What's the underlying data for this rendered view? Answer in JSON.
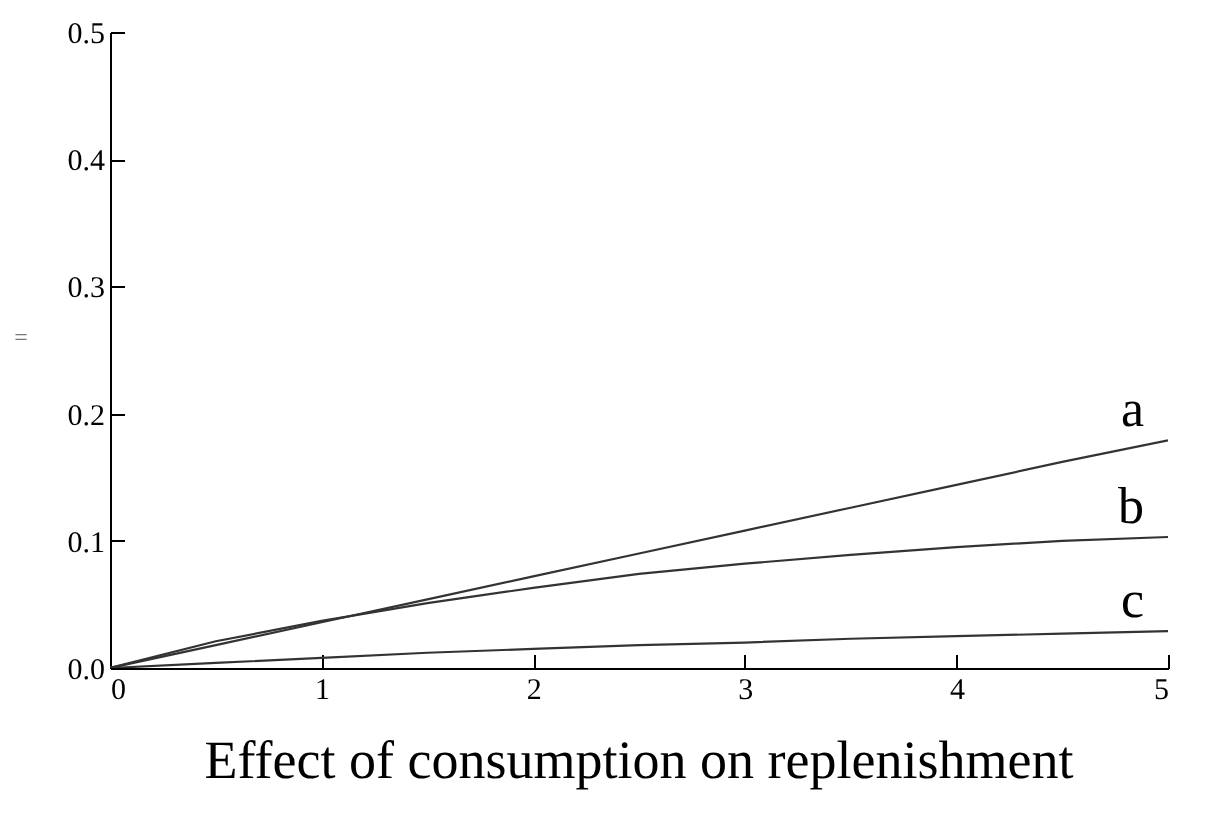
{
  "chart_data": {
    "type": "line",
    "xlabel": "Effect of consumption on replenishment",
    "ylabel": "=",
    "x": [
      0,
      0.5,
      1,
      1.5,
      2,
      2.5,
      3,
      3.5,
      4,
      4.5,
      5
    ],
    "series": [
      {
        "name": "a",
        "color": "#333333",
        "values": [
          0,
          0.018,
          0.036,
          0.054,
          0.072,
          0.09,
          0.108,
          0.126,
          0.144,
          0.162,
          0.179
        ]
      },
      {
        "name": "b",
        "color": "#333333",
        "values": [
          0,
          0.021,
          0.037,
          0.051,
          0.063,
          0.074,
          0.082,
          0.089,
          0.095,
          0.1,
          0.103
        ]
      },
      {
        "name": "c",
        "color": "#333333",
        "values": [
          0,
          0.004,
          0.008,
          0.012,
          0.015,
          0.018,
          0.02,
          0.023,
          0.025,
          0.027,
          0.029
        ]
      }
    ],
    "xlim": [
      0,
      5
    ],
    "xticks": [
      0,
      1,
      2,
      3,
      4,
      5
    ],
    "ylim": [
      0,
      0.5
    ],
    "yticks": [
      {
        "value": 0,
        "label": "0.0"
      },
      0.1,
      0.2,
      0.3,
      0.4,
      0.5
    ],
    "grid": false,
    "marker": "none",
    "line_style": "solid"
  }
}
